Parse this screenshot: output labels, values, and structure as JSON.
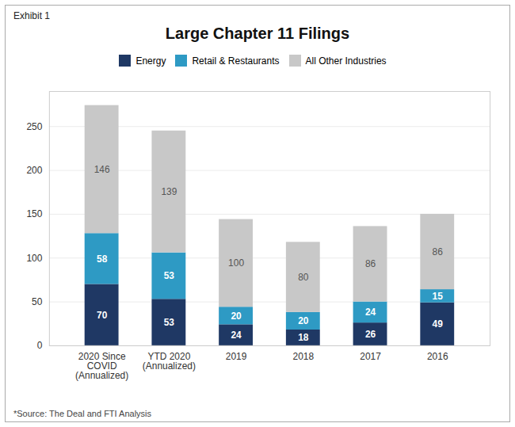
{
  "chart_data": {
    "type": "bar",
    "title": "Large Chapter 11 Filings",
    "annotations": [
      "Exhibit 1",
      "*Source: The Deal and FTI Analysis"
    ],
    "categories": [
      "2020 Since\nCOVID\n(Annualized)",
      "YTD 2020\n(Annualized)",
      "2019",
      "2018",
      "2017",
      "2016"
    ],
    "series": [
      {
        "name": "Energy",
        "color": "#1f3864",
        "values": [
          70,
          53,
          24,
          18,
          26,
          49
        ]
      },
      {
        "name": "Retail & Restaurants",
        "color": "#2e9ac4",
        "values": [
          58,
          53,
          20,
          20,
          24,
          15
        ]
      },
      {
        "name": "All Other Industries",
        "color": "#c8c8c8",
        "values": [
          146,
          139,
          100,
          80,
          86,
          86
        ]
      }
    ],
    "stacked": true,
    "data_labels": true,
    "ylim": [
      0,
      290
    ],
    "yticks": [
      0,
      50,
      100,
      150,
      200,
      250
    ],
    "grid": true,
    "legend": "top"
  }
}
